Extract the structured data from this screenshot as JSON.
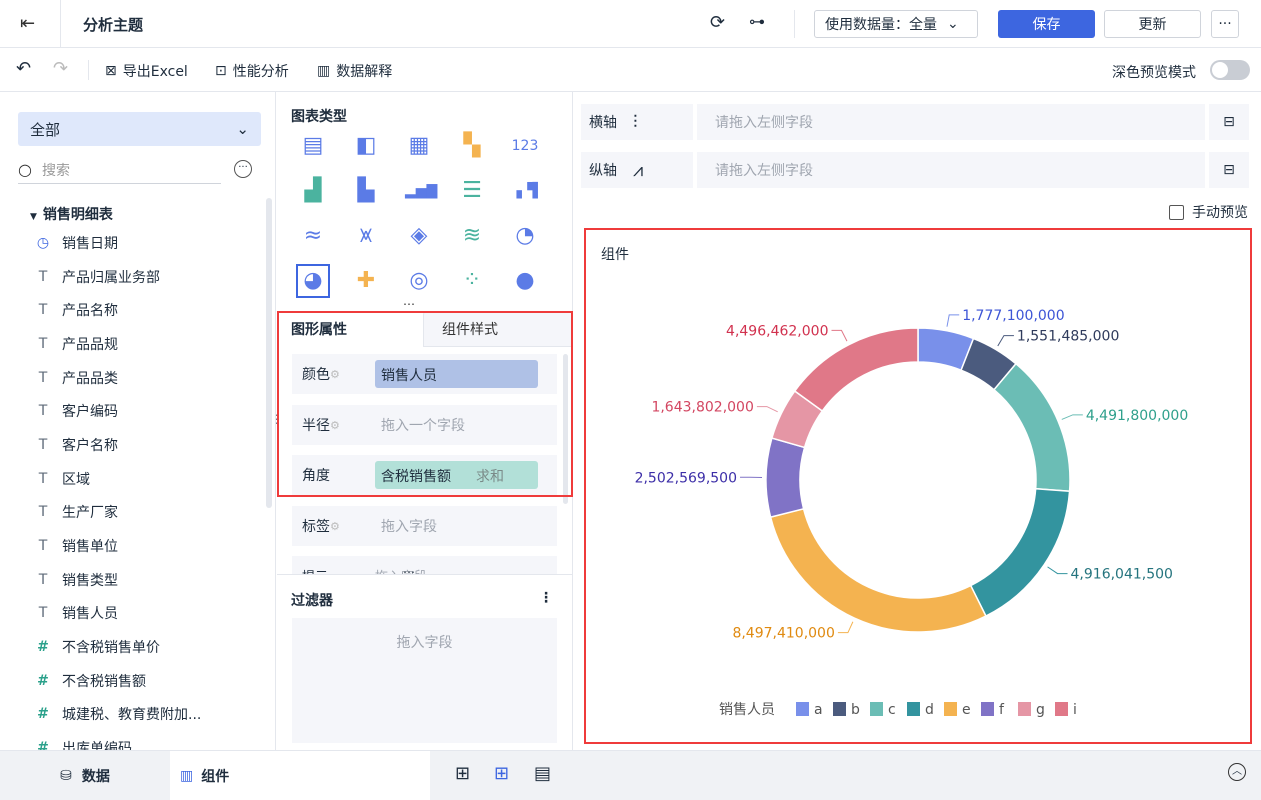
{
  "topbar": {
    "title": "分析主题",
    "data_amount_label": "使用数据量：全量",
    "save": "保存",
    "update": "更新",
    "more": "···"
  },
  "toolbar": {
    "export": "导出Excel",
    "performance": "性能分析",
    "explain": "数据解释",
    "dark_preview": "深色预览模式",
    "dark_preview_on": false
  },
  "left": {
    "dropdown": "全部",
    "search_placeholder": "搜索",
    "table_name": "销售明细表",
    "fields": [
      {
        "label": "销售日期",
        "type": "date"
      },
      {
        "label": "产品归属业务部",
        "type": "text"
      },
      {
        "label": "产品名称",
        "type": "text"
      },
      {
        "label": "产品品规",
        "type": "text"
      },
      {
        "label": "产品品类",
        "type": "text"
      },
      {
        "label": "客户编码",
        "type": "text"
      },
      {
        "label": "客户名称",
        "type": "text"
      },
      {
        "label": "区域",
        "type": "text"
      },
      {
        "label": "生产厂家",
        "type": "text"
      },
      {
        "label": "销售单位",
        "type": "text"
      },
      {
        "label": "销售类型",
        "type": "text"
      },
      {
        "label": "销售人员",
        "type": "text"
      },
      {
        "label": "不含税销售单价",
        "type": "number"
      },
      {
        "label": "不含税销售额",
        "type": "number"
      },
      {
        "label": "城建税、教育费附加...",
        "type": "number"
      },
      {
        "label": "出库单编码",
        "type": "number"
      }
    ]
  },
  "middle": {
    "chart_type_title": "图表类型",
    "chart_types": [
      "table-icon",
      "cross-table-icon",
      "detail-table-icon",
      "kpi-block-icon",
      "number-icon",
      "grouped-bar-icon",
      "stacked-bar-icon",
      "multi-bar-icon",
      "horizontal-bar-icon",
      "waterfall-icon",
      "line-icon",
      "multi-line-icon",
      "radar-icon",
      "area-icon",
      "gauge-icon",
      "pie-icon",
      "rose-pie-icon",
      "donut-icon",
      "scatter-icon",
      "bubble-icon"
    ],
    "selected_chart_type": "pie-icon",
    "tabs": [
      "图形属性",
      "组件样式"
    ],
    "props": [
      {
        "label": "颜色",
        "value": "销售人员",
        "placeholder": ""
      },
      {
        "label": "半径",
        "value": "",
        "placeholder": "拖入一个字段"
      },
      {
        "label": "角度",
        "value": "含税销售额",
        "agg": "求和"
      },
      {
        "label": "标签",
        "value": "",
        "placeholder": "拖入字段"
      },
      {
        "label": "提示",
        "value": "",
        "placeholder": "拖入字段"
      }
    ],
    "filter_title": "过滤器",
    "filter_placeholder": "拖入字段"
  },
  "right": {
    "x_axis": "横轴",
    "y_axis": "纵轴",
    "axis_placeholder": "请拖入左侧字段",
    "manual_preview": "手动预览",
    "component_title": "组件"
  },
  "bottom": {
    "data_tab": "数据",
    "component_tab": "组件"
  },
  "chart_data": {
    "type": "pie",
    "donut": true,
    "legend_title": "销售人员",
    "legend_position": "bottom",
    "categories": [
      "a",
      "b",
      "c",
      "d",
      "e",
      "f",
      "g",
      "i"
    ],
    "values": [
      1777100000,
      1551485000,
      4491800000,
      4916041500,
      8497410000,
      2502569500,
      1643802000,
      4496462000
    ],
    "labels": [
      "1,777,100,000",
      "1,551,485,000",
      "4,491,800,000",
      "4,916,041,500",
      "8,497,410,000",
      "2,502,569,500",
      "1,643,802,000",
      "4,496,462,000"
    ],
    "colors": [
      "#7990ea",
      "#4b5b7e",
      "#6bbdb5",
      "#33949f",
      "#f4b350",
      "#8073c6",
      "#e596a5",
      "#e07888"
    ],
    "label_colors": [
      "#3d55d6",
      "#2f3b5c",
      "#2fa08c",
      "#25747e",
      "#e08a10",
      "#3d2fa8",
      "#d34661",
      "#d1314e"
    ]
  }
}
